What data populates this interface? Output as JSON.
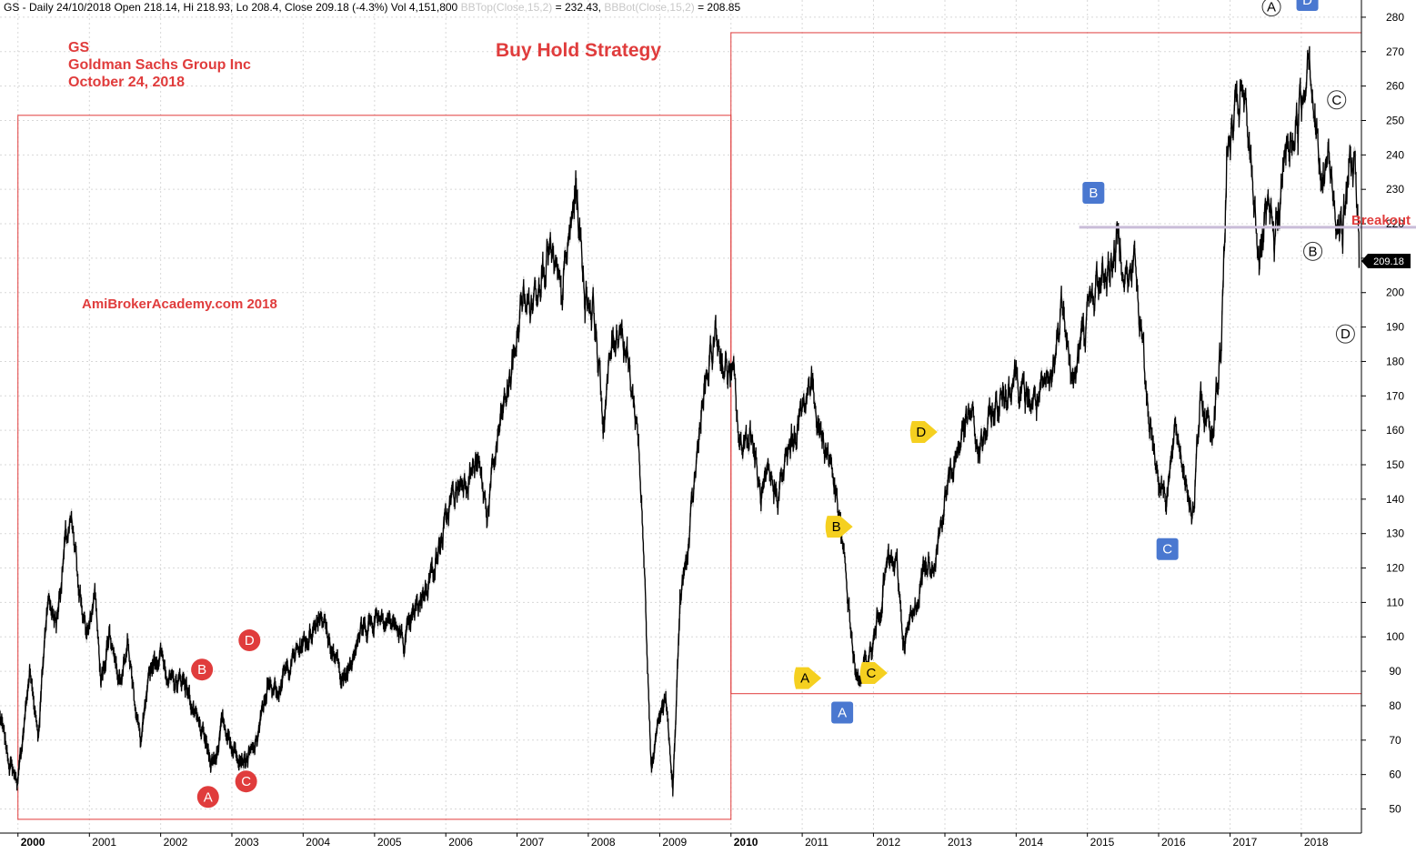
{
  "header": {
    "symbol": "GS",
    "sep": " - ",
    "period": "Daily",
    "date": "24/10/2018",
    "open_label": "Open",
    "open": "218.14",
    "hi_label": "Hi",
    "hi": "218.93",
    "lo_label": "Lo",
    "lo": "208.4",
    "close_label": "Close",
    "close": "209.18",
    "change": "(-4.3%)",
    "vol_label": "Vol",
    "vol": "4,151,800",
    "bbtop_label": "BBTop(Close,15,2)",
    "bbtop_value": "= 232.43",
    "bbbot_label": "BBBot(Close,15,2)",
    "bbbot_value": "= 208.85"
  },
  "annotations": {
    "ticker": "GS",
    "company": "Goldman Sachs Group Inc",
    "date": "October 24, 2018",
    "strategy_title": "Buy Hold Strategy",
    "watermark": "AmiBrokerAcademy.com  2018",
    "breakout_label": "Breakout",
    "last_price_tag": "209.18"
  },
  "colors": {
    "price": "#000000",
    "bollinger": "#d0d0d0",
    "box": "#e03c3c",
    "text_red": "#e03c3c",
    "breakout_line": "#c9bcd8",
    "grid": "#d8d8d8",
    "marker_red": "#e03c3c",
    "marker_blue": "#4a78d0",
    "marker_yellow": "#f5d020",
    "marker_white": "#ffffff"
  },
  "chart_data": {
    "type": "line",
    "x_axis_type": "date",
    "xlim": [
      "1999-10-01",
      "2018-11-05"
    ],
    "ylim": [
      43,
      285
    ],
    "y_axis_position": "right",
    "y_ticks": [
      50,
      60,
      70,
      80,
      90,
      100,
      110,
      120,
      130,
      140,
      150,
      160,
      170,
      180,
      190,
      200,
      210,
      220,
      230,
      240,
      250,
      260,
      270,
      280
    ],
    "x_ticks": [
      "2000",
      "2001",
      "2002",
      "2003",
      "2004",
      "2005",
      "2006",
      "2007",
      "2008",
      "2009",
      "2010",
      "2011",
      "2012",
      "2013",
      "2014",
      "2015",
      "2016",
      "2017",
      "2018"
    ],
    "x_tick_dates": [
      "2000-01-01",
      "2001-01-01",
      "2002-01-01",
      "2003-01-01",
      "2004-01-01",
      "2005-01-01",
      "2006-01-01",
      "2007-01-01",
      "2008-01-01",
      "2009-01-01",
      "2010-01-01",
      "2011-01-01",
      "2012-01-01",
      "2013-01-01",
      "2014-01-01",
      "2015-01-01",
      "2016-01-01",
      "2017-01-01",
      "2018-01-01"
    ],
    "x_ticks_bold": [
      "2000",
      "2010"
    ],
    "grid": true,
    "series": [
      {
        "style": "price",
        "x": [
          "1999-10-01",
          "1999-11-15",
          "2000-01-01",
          "2000-03-01",
          "2000-04-15",
          "2000-06-01",
          "2000-07-15",
          "2000-09-01",
          "2000-10-01",
          "2000-12-15",
          "2001-02-01",
          "2001-03-01",
          "2001-04-15",
          "2001-06-01",
          "2001-07-15",
          "2001-09-21",
          "2001-11-15",
          "2002-01-01",
          "2002-03-01",
          "2002-05-01",
          "2002-07-01",
          "2002-08-15",
          "2002-09-15",
          "2002-10-10",
          "2002-11-15",
          "2003-01-01",
          "2003-03-11",
          "2003-05-01",
          "2003-07-01",
          "2003-09-01",
          "2003-12-01",
          "2004-02-01",
          "2004-04-01",
          "2004-06-01",
          "2004-08-01",
          "2004-10-01",
          "2004-12-01",
          "2005-02-01",
          "2005-04-20",
          "2005-06-01",
          "2005-08-01",
          "2005-10-01",
          "2005-12-01",
          "2006-02-01",
          "2006-04-01",
          "2006-06-15",
          "2006-08-01",
          "2006-10-01",
          "2006-12-01",
          "2007-02-01",
          "2007-03-15",
          "2007-05-01",
          "2007-06-15",
          "2007-08-15",
          "2007-10-31",
          "2007-12-15",
          "2008-01-31",
          "2008-03-17",
          "2008-05-01",
          "2008-06-15",
          "2008-08-01",
          "2008-09-15",
          "2008-10-15",
          "2008-11-20",
          "2008-12-20",
          "2009-02-01",
          "2009-03-09",
          "2009-04-15",
          "2009-06-01",
          "2009-08-01",
          "2009-10-15",
          "2009-12-01",
          "2010-01-15",
          "2010-02-15",
          "2010-04-15",
          "2010-06-01",
          "2010-07-15",
          "2010-09-01",
          "2010-11-01",
          "2011-01-15",
          "2011-02-15",
          "2011-04-01",
          "2011-06-01",
          "2011-08-08",
          "2011-10-04",
          "2011-11-25",
          "2012-01-01",
          "2012-03-15",
          "2012-05-01",
          "2012-06-04",
          "2012-08-01",
          "2012-09-15",
          "2012-11-15",
          "2013-01-15",
          "2013-03-15",
          "2013-05-15",
          "2013-06-25",
          "2013-09-01",
          "2013-11-01",
          "2014-01-01",
          "2014-02-01",
          "2014-04-15",
          "2014-07-01",
          "2014-09-01",
          "2014-10-15",
          "2014-12-15",
          "2015-02-15",
          "2015-04-15",
          "2015-06-15",
          "2015-08-01",
          "2015-09-01",
          "2015-11-01",
          "2016-01-01",
          "2016-02-11",
          "2016-04-01",
          "2016-06-27",
          "2016-08-01",
          "2016-10-01",
          "2016-11-15",
          "2016-12-15",
          "2017-03-01",
          "2017-04-15",
          "2017-06-01",
          "2017-07-15",
          "2017-08-15",
          "2017-10-15",
          "2017-12-15",
          "2018-01-15",
          "2018-02-09",
          "2018-03-12",
          "2018-04-15",
          "2018-05-15",
          "2018-06-27",
          "2018-08-01",
          "2018-09-01",
          "2018-10-05",
          "2018-10-24"
        ],
        "values": [
          77,
          64,
          58,
          90,
          72,
          112,
          104,
          128,
          132,
          100,
          112,
          86,
          102,
          88,
          98,
          69,
          92,
          95,
          86,
          88,
          76,
          70,
          64,
          65,
          76,
          68,
          64,
          68,
          85,
          86,
          96,
          100,
          108,
          95,
          87,
          100,
          104,
          107,
          103,
          98,
          108,
          116,
          126,
          140,
          146,
          150,
          136,
          160,
          176,
          199,
          196,
          208,
          212,
          198,
          230,
          200,
          195,
          162,
          185,
          192,
          176,
          158,
          118,
          62,
          75,
          82,
          55,
          110,
          128,
          165,
          188,
          178,
          175,
          155,
          160,
          140,
          145,
          142,
          155,
          168,
          176,
          160,
          150,
          120,
          87,
          92,
          98,
          122,
          120,
          98,
          108,
          120,
          124,
          144,
          156,
          165,
          153,
          165,
          170,
          178,
          170,
          168,
          174,
          200,
          172,
          190,
          202,
          206,
          216,
          202,
          210,
          170,
          146,
          142,
          160,
          135,
          168,
          160,
          182,
          239,
          258,
          240,
          210,
          222,
          215,
          240,
          250,
          260,
          275,
          250,
          230,
          240,
          225,
          218,
          235,
          238,
          209
        ]
      }
    ],
    "boxes": [
      {
        "x0": "2000-01-01",
        "x1": "2010-01-01",
        "y0": 47,
        "y1": 251.5
      },
      {
        "x0": "2010-01-01",
        "x1": "2018-11-05",
        "y0": 83.5,
        "y1": 275.5
      }
    ],
    "breakout_level": 219,
    "breakout_from": "2014-11-20",
    "last_close": 209.18,
    "markers": [
      {
        "label": "A",
        "color": "red",
        "shape": "circle",
        "x": "2002-09-01",
        "y": 53.5
      },
      {
        "label": "B",
        "color": "red",
        "shape": "circle",
        "x": "2002-08-01",
        "y": 90.5
      },
      {
        "label": "C",
        "color": "red",
        "shape": "circle",
        "x": "2003-03-15",
        "y": 58
      },
      {
        "label": "D",
        "color": "red",
        "shape": "circle",
        "x": "2003-04-01",
        "y": 99
      },
      {
        "label": "A",
        "color": "blue",
        "shape": "square",
        "x": "2011-07-25",
        "y": 78
      },
      {
        "label": "B",
        "color": "blue",
        "shape": "square",
        "x": "2015-02-01",
        "y": 229
      },
      {
        "label": "C",
        "color": "blue",
        "shape": "square",
        "x": "2016-02-15",
        "y": 125.5
      },
      {
        "label": "D",
        "color": "blue",
        "shape": "square",
        "x": "2018-02-01",
        "y": 285
      },
      {
        "label": "A",
        "color": "yellow",
        "shape": "pointer",
        "x": "2011-01-15",
        "y": 88
      },
      {
        "label": "B",
        "color": "yellow",
        "shape": "pointer",
        "x": "2011-06-25",
        "y": 132
      },
      {
        "label": "C",
        "color": "yellow",
        "shape": "pointer",
        "x": "2011-12-20",
        "y": 89.5
      },
      {
        "label": "D",
        "color": "yellow",
        "shape": "pointer",
        "x": "2012-09-01",
        "y": 159.5
      },
      {
        "label": "A",
        "color": "white",
        "shape": "circle",
        "x": "2017-08-01",
        "y": 283
      },
      {
        "label": "B",
        "color": "white",
        "shape": "circle",
        "x": "2018-03-01",
        "y": 212
      },
      {
        "label": "C",
        "color": "white",
        "shape": "circle",
        "x": "2018-07-01",
        "y": 256
      },
      {
        "label": "D",
        "color": "white",
        "shape": "circle",
        "x": "2018-08-15",
        "y": 188
      }
    ]
  }
}
